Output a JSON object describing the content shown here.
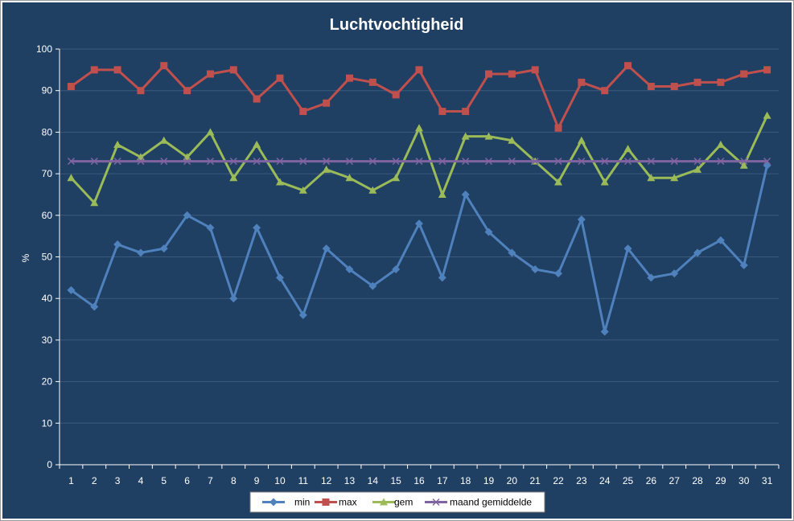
{
  "chart_data": {
    "type": "line",
    "title": "Luchtvochtigheid",
    "xlabel": "",
    "ylabel": "%",
    "ylim": [
      0,
      100
    ],
    "yticks": [
      0,
      10,
      20,
      30,
      40,
      50,
      60,
      70,
      80,
      90,
      100
    ],
    "categories": [
      "1",
      "2",
      "3",
      "4",
      "5",
      "6",
      "7",
      "8",
      "9",
      "10",
      "11",
      "12",
      "13",
      "14",
      "15",
      "16",
      "17",
      "18",
      "19",
      "20",
      "21",
      "22",
      "23",
      "24",
      "25",
      "26",
      "27",
      "28",
      "29",
      "30",
      "31"
    ],
    "grid": true,
    "legend_position": "bottom",
    "series": [
      {
        "name": "min",
        "color": "#4f81bd",
        "marker": "diamond",
        "values": [
          42,
          38,
          53,
          51,
          52,
          60,
          57,
          40,
          57,
          45,
          36,
          52,
          47,
          43,
          47,
          58,
          45,
          65,
          56,
          51,
          47,
          46,
          59,
          32,
          52,
          45,
          46,
          51,
          54,
          48,
          72
        ]
      },
      {
        "name": "max",
        "color": "#c0504d",
        "marker": "square",
        "values": [
          91,
          95,
          95,
          90,
          96,
          90,
          94,
          95,
          88,
          93,
          85,
          87,
          93,
          92,
          89,
          95,
          85,
          85,
          94,
          94,
          95,
          81,
          92,
          90,
          96,
          91,
          91,
          92,
          92,
          94,
          95
        ]
      },
      {
        "name": "gem",
        "color": "#9bbb59",
        "marker": "triangle",
        "values": [
          69,
          63,
          77,
          74,
          78,
          74,
          80,
          69,
          77,
          68,
          66,
          71,
          69,
          66,
          69,
          81,
          65,
          79,
          79,
          78,
          73,
          68,
          78,
          68,
          76,
          69,
          69,
          71,
          77,
          72,
          84
        ]
      },
      {
        "name": "maand gemiddelde",
        "color": "#8064a2",
        "marker": "x",
        "values": [
          73,
          73,
          73,
          73,
          73,
          73,
          73,
          73,
          73,
          73,
          73,
          73,
          73,
          73,
          73,
          73,
          73,
          73,
          73,
          73,
          73,
          73,
          73,
          73,
          73,
          73,
          73,
          73,
          73,
          73,
          73
        ]
      }
    ]
  }
}
